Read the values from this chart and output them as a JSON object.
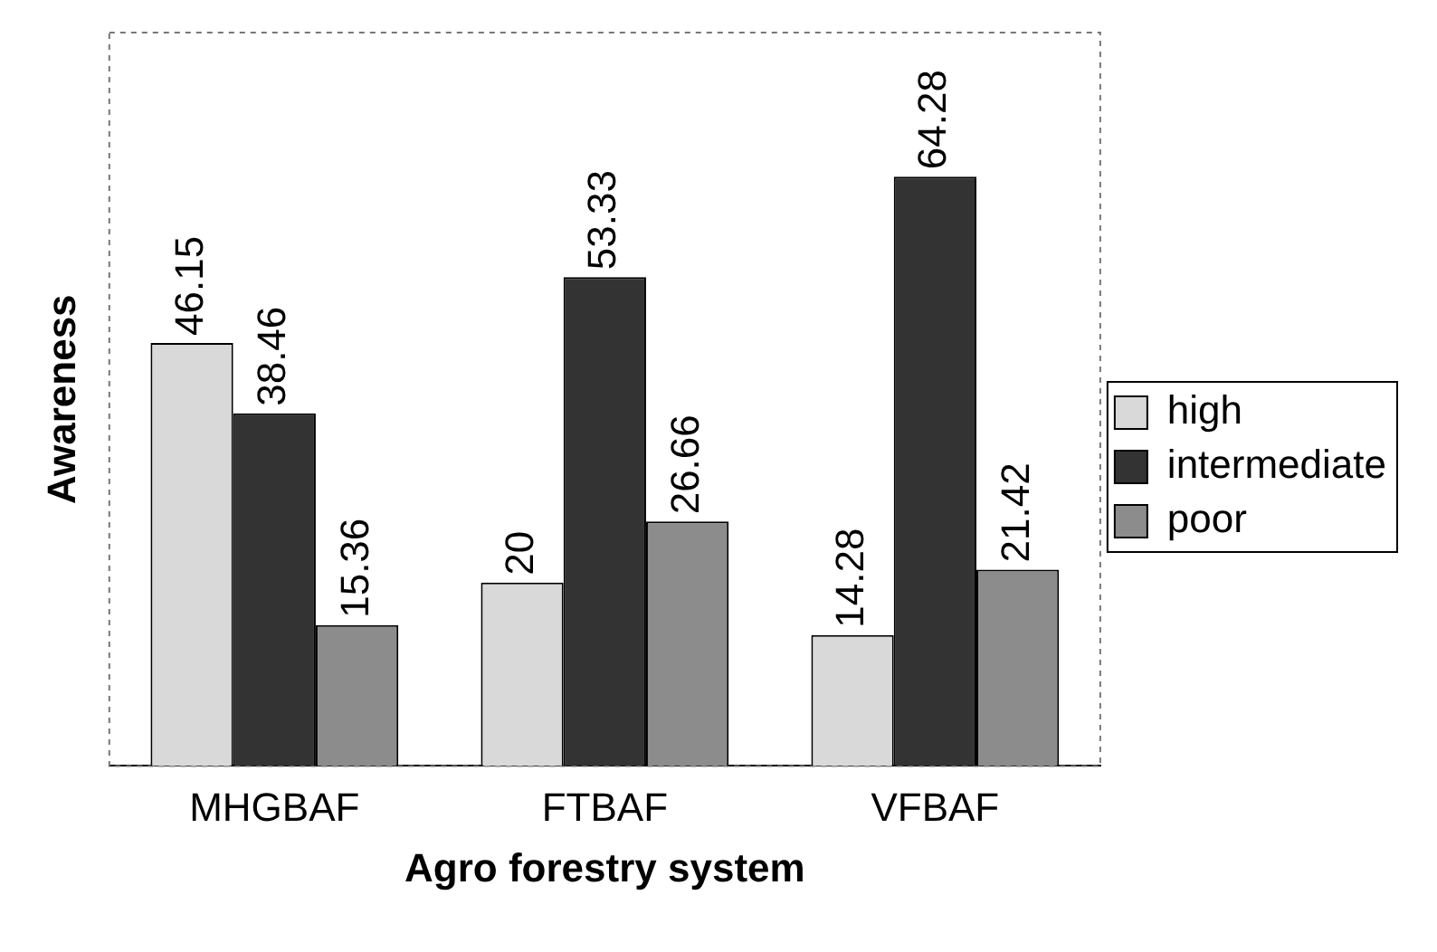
{
  "chart_data": {
    "type": "bar",
    "xlabel": "Agro forestry system",
    "ylabel": "Awareness",
    "categories": [
      "MHGBAF",
      "FTBAF",
      "VFBAF"
    ],
    "series": [
      {
        "name": "high",
        "color": "#d9d9d9",
        "values": [
          46.15,
          20,
          14.28
        ]
      },
      {
        "name": "intermediate",
        "color": "#333333",
        "values": [
          38.46,
          53.33,
          64.28
        ]
      },
      {
        "name": "poor",
        "color": "#8c8c8c",
        "values": [
          15.36,
          26.66,
          21.42
        ]
      }
    ],
    "data_labels": true,
    "legend": "right",
    "grid": false
  }
}
